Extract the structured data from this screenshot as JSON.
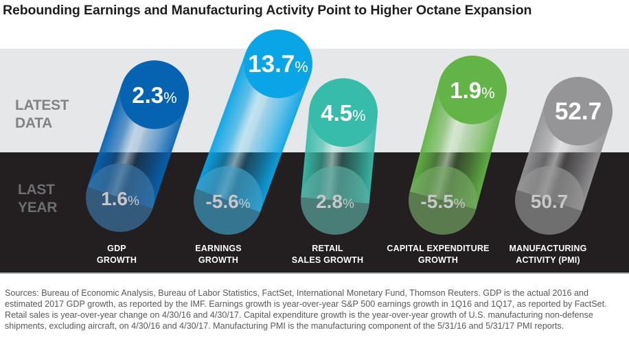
{
  "title": "Rebounding Earnings and Manufacturing Activity Point to Higher Octane Expansion",
  "row_labels": {
    "latest": [
      "LATEST",
      "DATA"
    ],
    "last": [
      "LAST",
      "YEAR"
    ]
  },
  "chart_data": {
    "type": "table",
    "title": "Rebounding Earnings and Manufacturing Activity Point to Higher Octane Expansion",
    "rows": [
      "LATEST DATA",
      "LAST YEAR"
    ],
    "categories": [
      {
        "label": [
          "GDP",
          "GROWTH"
        ],
        "latest": 2.3,
        "last_year": 1.6,
        "unit": "%",
        "latest_text": "2.3",
        "last_text": "1.6",
        "color": "#0563b2"
      },
      {
        "label": [
          "EARNINGS",
          "GROWTH"
        ],
        "latest": 13.7,
        "last_year": -5.6,
        "unit": "%",
        "latest_text": "13.7",
        "last_text": "-5.6",
        "color": "#0aa5e6"
      },
      {
        "label": [
          "RETAIL",
          "SALES GROWTH"
        ],
        "latest": 4.5,
        "last_year": 2.8,
        "unit": "%",
        "latest_text": "4.5",
        "last_text": "2.8",
        "color": "#37bcaa"
      },
      {
        "label": [
          "CAPITAL EXPENDITURE",
          "GROWTH"
        ],
        "latest": 1.9,
        "last_year": -5.5,
        "unit": "%",
        "latest_text": "1.9",
        "last_text": "-5.5",
        "color": "#62b446"
      },
      {
        "label": [
          "MANUFACTURING",
          "ACTIVITY (PMI)"
        ],
        "latest": 52.7,
        "last_year": 50.7,
        "unit": "",
        "latest_text": "52.7",
        "last_text": "50.7",
        "color": "#959597"
      }
    ]
  },
  "footnote": "Sources: Bureau of Economic Analysis, Bureau of Labor Statistics, FactSet, International Monetary Fund, Thomson Reuters. GDP is the actual 2016 and estimated 2017 GDP growth, as reported by the IMF. Earnings growth is year-over-year S&P 500 earnings growth in 1Q16 and 1Q17, as reported by FactSet. Retail sales is year-over-year change on 4/30/16 and 4/30/17. Capital expenditure growth is the year-over-year growth of U.S. manufacturing non-defense shipments, excluding aircraft, on 4/30/16 and 4/30/17. Manufacturing PMI is the manufacturing component of the 5/31/16 and 5/31/17 PMI reports."
}
